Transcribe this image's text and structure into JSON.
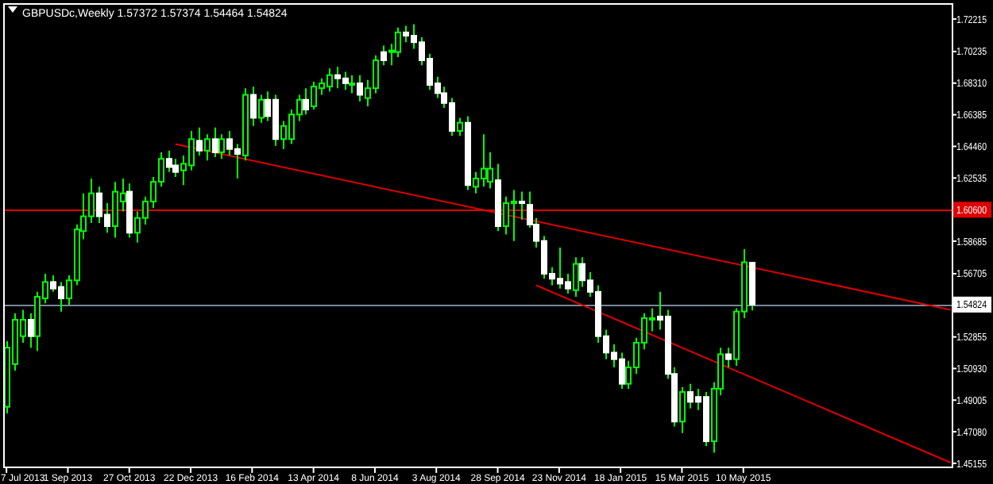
{
  "chart_data": {
    "type": "candlestick",
    "title": "GBPUSDc,Weekly  1.57372 1.57374 1.54464 1.54824",
    "x": [
      "2013-07-07",
      "2013-07-14",
      "2013-07-21",
      "2013-07-28",
      "2013-08-04",
      "2013-08-11",
      "2013-08-18",
      "2013-08-25",
      "2013-09-01",
      "2013-09-08",
      "2013-09-15",
      "2013-09-22",
      "2013-09-29",
      "2013-10-06",
      "2013-10-13",
      "2013-10-20",
      "2013-10-27",
      "2013-11-03",
      "2013-11-10",
      "2013-11-17",
      "2013-11-24",
      "2013-12-01",
      "2013-12-08",
      "2013-12-15",
      "2013-12-22",
      "2013-12-29",
      "2014-01-05",
      "2014-01-12",
      "2014-01-19",
      "2014-01-26",
      "2014-02-02",
      "2014-02-09",
      "2014-02-16",
      "2014-02-23",
      "2014-03-02",
      "2014-03-09",
      "2014-03-16",
      "2014-03-23",
      "2014-03-30",
      "2014-04-06",
      "2014-04-13",
      "2014-04-20",
      "2014-04-27",
      "2014-05-04",
      "2014-05-11",
      "2014-05-18",
      "2014-05-25",
      "2014-06-01",
      "2014-06-08",
      "2014-06-15",
      "2014-06-22",
      "2014-06-29",
      "2014-07-06",
      "2014-07-13",
      "2014-07-20",
      "2014-07-27",
      "2014-08-03",
      "2014-08-10",
      "2014-08-17",
      "2014-08-24",
      "2014-08-31",
      "2014-09-07",
      "2014-09-14",
      "2014-09-21",
      "2014-09-28",
      "2014-10-05",
      "2014-10-12",
      "2014-10-19",
      "2014-10-26",
      "2014-11-02",
      "2014-11-09",
      "2014-11-16",
      "2014-11-23",
      "2014-11-30",
      "2014-12-07",
      "2014-12-14",
      "2014-12-21",
      "2014-12-28",
      "2015-01-04",
      "2015-01-11",
      "2015-01-18",
      "2015-01-25",
      "2015-02-01",
      "2015-02-08",
      "2015-02-15",
      "2015-02-22",
      "2015-03-01",
      "2015-03-08",
      "2015-03-15",
      "2015-03-22",
      "2015-03-29",
      "2015-04-05",
      "2015-04-12",
      "2015-04-19",
      "2015-04-26",
      "2015-05-03",
      "2015-05-10",
      "2015-05-17"
    ],
    "series": [
      {
        "color": "#00ff00",
        "colors": [
          "#00ff00",
          "#00ff00",
          "#00ff00",
          "#ffffff",
          "#00ff00",
          "#00ff00",
          "#ffffff",
          "#ffffff",
          "#00ff00",
          "#00ff00",
          "#00ff00",
          "#00ff00",
          "#ffffff",
          "#ffffff",
          "#00ff00",
          "#00ff00",
          "#ffffff",
          "#00ff00",
          "#00ff00",
          "#00ff00",
          "#00ff00",
          "#ffffff",
          "#ffffff",
          "#00ff00",
          "#00ff00",
          "#ffffff",
          "#00ff00",
          "#ffffff",
          "#00ff00",
          "#ffffff",
          "#ffffff",
          "#00ff00",
          "#ffffff",
          "#00ff00",
          "#ffffff",
          "#ffffff",
          "#00ff00",
          "#00ff00",
          "#00ff00",
          "#ffffff",
          "#00ff00",
          "#00ff00",
          "#00ff00",
          "#ffffff",
          "#ffffff",
          "#00ff00",
          "#ffffff",
          "#00ff00",
          "#00ff00",
          "#ffffff",
          "#00ff00",
          "#00ff00",
          "#ffffff",
          "#ffffff",
          "#ffffff",
          "#ffffff",
          "#ffffff",
          "#ffffff",
          "#ffffff",
          "#00ff00",
          "#ffffff",
          "#00ff00",
          "#00ff00",
          "#00ff00",
          "#ffffff",
          "#00ff00",
          "#00ff00",
          "#ffffff",
          "#ffffff",
          "#ffffff",
          "#ffffff",
          "#ffffff",
          "#ffffff",
          "#ffffff",
          "#00ff00",
          "#ffffff",
          "#ffffff",
          "#ffffff",
          "#ffffff",
          "#ffffff",
          "#ffffff",
          "#00ff00",
          "#00ff00",
          "#00ff00",
          "#00ff00",
          "#ffffff",
          "#ffffff",
          "#ffffff",
          "#00ff00",
          "#ffffff",
          "#ffffff",
          "#ffffff",
          "#00ff00",
          "#00ff00",
          "#ffffff",
          "#00ff00",
          "#00ff00",
          "#ffffff"
        ],
        "ohlc": [
          [
            1.486,
            1.526,
            1.482,
            1.522
          ],
          [
            1.512,
            1.543,
            1.508,
            1.539
          ],
          [
            1.529,
            1.545,
            1.525,
            1.539
          ],
          [
            1.539,
            1.543,
            1.522,
            1.529
          ],
          [
            1.529,
            1.556,
            1.52,
            1.553
          ],
          [
            1.552,
            1.567,
            1.549,
            1.562
          ],
          [
            1.562,
            1.566,
            1.556,
            1.558
          ],
          [
            1.559,
            1.562,
            1.544,
            1.552
          ],
          [
            1.552,
            1.566,
            1.548,
            1.563
          ],
          [
            1.563,
            1.597,
            1.56,
            1.594
          ],
          [
            1.593,
            1.616,
            1.588,
            1.602
          ],
          [
            1.602,
            1.625,
            1.598,
            1.616
          ],
          [
            1.616,
            1.62,
            1.598,
            1.602
          ],
          [
            1.603,
            1.61,
            1.592,
            1.596
          ],
          [
            1.596,
            1.623,
            1.589,
            1.617
          ],
          [
            1.611,
            1.625,
            1.605,
            1.616
          ],
          [
            1.617,
            1.622,
            1.589,
            1.592
          ],
          [
            1.592,
            1.605,
            1.586,
            1.601
          ],
          [
            1.601,
            1.614,
            1.597,
            1.611
          ],
          [
            1.611,
            1.626,
            1.607,
            1.623
          ],
          [
            1.623,
            1.641,
            1.62,
            1.637
          ],
          [
            1.637,
            1.642,
            1.629,
            1.632
          ],
          [
            1.633,
            1.637,
            1.626,
            1.629
          ],
          [
            1.63,
            1.639,
            1.621,
            1.634
          ],
          [
            1.633,
            1.654,
            1.63,
            1.649
          ],
          [
            1.648,
            1.656,
            1.639,
            1.642
          ],
          [
            1.642,
            1.652,
            1.636,
            1.649
          ],
          [
            1.649,
            1.656,
            1.638,
            1.641
          ],
          [
            1.641,
            1.652,
            1.637,
            1.649
          ],
          [
            1.649,
            1.654,
            1.639,
            1.643
          ],
          [
            1.643,
            1.646,
            1.625,
            1.64
          ],
          [
            1.639,
            1.68,
            1.636,
            1.676
          ],
          [
            1.676,
            1.681,
            1.657,
            1.662
          ],
          [
            1.662,
            1.676,
            1.659,
            1.673
          ],
          [
            1.673,
            1.678,
            1.66,
            1.663
          ],
          [
            1.673,
            1.676,
            1.645,
            1.649
          ],
          [
            1.649,
            1.66,
            1.643,
            1.657
          ],
          [
            1.649,
            1.667,
            1.646,
            1.664
          ],
          [
            1.664,
            1.676,
            1.66,
            1.673
          ],
          [
            1.673,
            1.68,
            1.664,
            1.667
          ],
          [
            1.669,
            1.684,
            1.667,
            1.681
          ],
          [
            1.68,
            1.686,
            1.676,
            1.683
          ],
          [
            1.681,
            1.692,
            1.678,
            1.688
          ],
          [
            1.688,
            1.693,
            1.68,
            1.686
          ],
          [
            1.686,
            1.69,
            1.679,
            1.683
          ],
          [
            1.683,
            1.688,
            1.677,
            1.683
          ],
          [
            1.683,
            1.688,
            1.672,
            1.676
          ],
          [
            1.674,
            1.685,
            1.669,
            1.68
          ],
          [
            1.68,
            1.7,
            1.677,
            1.697
          ],
          [
            1.702,
            1.706,
            1.694,
            1.697
          ],
          [
            1.702,
            1.707,
            1.694,
            1.703
          ],
          [
            1.702,
            1.717,
            1.699,
            1.714
          ],
          [
            1.714,
            1.718,
            1.708,
            1.712
          ],
          [
            1.712,
            1.719,
            1.704,
            1.708
          ],
          [
            1.708,
            1.711,
            1.694,
            1.697
          ],
          [
            1.698,
            1.701,
            1.679,
            1.682
          ],
          [
            1.683,
            1.687,
            1.674,
            1.677
          ],
          [
            1.677,
            1.681,
            1.668,
            1.671
          ],
          [
            1.671,
            1.674,
            1.651,
            1.654
          ],
          [
            1.654,
            1.662,
            1.651,
            1.659
          ],
          [
            1.659,
            1.663,
            1.618,
            1.621
          ],
          [
            1.62,
            1.629,
            1.616,
            1.625
          ],
          [
            1.625,
            1.652,
            1.62,
            1.631
          ],
          [
            1.623,
            1.641,
            1.619,
            1.631
          ],
          [
            1.624,
            1.634,
            1.593,
            1.596
          ],
          [
            1.596,
            1.614,
            1.591,
            1.61
          ],
          [
            1.61,
            1.618,
            1.587,
            1.611
          ],
          [
            1.611,
            1.617,
            1.6,
            1.61
          ],
          [
            1.609,
            1.617,
            1.595,
            1.597
          ],
          [
            1.597,
            1.601,
            1.583,
            1.587
          ],
          [
            1.587,
            1.59,
            1.564,
            1.567
          ],
          [
            1.567,
            1.571,
            1.56,
            1.564
          ],
          [
            1.564,
            1.583,
            1.558,
            1.561
          ],
          [
            1.562,
            1.567,
            1.555,
            1.558
          ],
          [
            1.557,
            1.577,
            1.553,
            1.573
          ],
          [
            1.573,
            1.577,
            1.559,
            1.563
          ],
          [
            1.563,
            1.568,
            1.553,
            1.556
          ],
          [
            1.556,
            1.56,
            1.525,
            1.529
          ],
          [
            1.529,
            1.533,
            1.515,
            1.519
          ],
          [
            1.519,
            1.524,
            1.51,
            1.515
          ],
          [
            1.515,
            1.519,
            1.497,
            1.5
          ],
          [
            1.5,
            1.514,
            1.497,
            1.51
          ],
          [
            1.51,
            1.528,
            1.506,
            1.525
          ],
          [
            1.525,
            1.543,
            1.521,
            1.54
          ],
          [
            1.54,
            1.546,
            1.532,
            1.54
          ],
          [
            1.541,
            1.556,
            1.533,
            1.539
          ],
          [
            1.541,
            1.545,
            1.503,
            1.506
          ],
          [
            1.506,
            1.51,
            1.474,
            1.477
          ],
          [
            1.477,
            1.498,
            1.47,
            1.495
          ],
          [
            1.495,
            1.5,
            1.485,
            1.489
          ],
          [
            1.492,
            1.497,
            1.484,
            1.489
          ],
          [
            1.492,
            1.495,
            1.462,
            1.465
          ],
          [
            1.465,
            1.501,
            1.458,
            1.497
          ],
          [
            1.497,
            1.522,
            1.493,
            1.518
          ],
          [
            1.518,
            1.522,
            1.51,
            1.515
          ],
          [
            1.515,
            1.546,
            1.511,
            1.544
          ],
          [
            1.544,
            1.582,
            1.54,
            1.574
          ],
          [
            1.57372,
            1.57374,
            1.54464,
            1.54824
          ]
        ]
      },
      {
        "type": "line",
        "color": "#e00000",
        "x": [
          "2013-12-08",
          "2015-11-15"
        ],
        "values": [
          1.646,
          1.545
        ]
      },
      {
        "type": "line",
        "color": "#e00000",
        "x": [
          "2014-11-02",
          "2015-11-15"
        ],
        "values": [
          1.56,
          1.452
        ]
      }
    ],
    "xlim": [
      "2013-07-04",
      "2015-11-16"
    ],
    "xticks": [
      {
        "value": "2013-07-07",
        "label": "7 Jul 2013"
      },
      {
        "value": "2013-09-01",
        "label": "1 Sep 2013"
      },
      {
        "value": "2013-10-27",
        "label": "27 Oct 2013"
      },
      {
        "value": "2013-12-22",
        "label": "22 Dec 2013"
      },
      {
        "value": "2014-02-16",
        "label": "16 Feb 2014"
      },
      {
        "value": "2014-04-13",
        "label": "13 Apr 2014"
      },
      {
        "value": "2014-06-08",
        "label": "8 Jun 2014"
      },
      {
        "value": "2014-08-03",
        "label": "3 Aug 2014"
      },
      {
        "value": "2014-09-28",
        "label": "28 Sep 2014"
      },
      {
        "value": "2014-11-23",
        "label": "23 Nov 2014"
      },
      {
        "value": "2015-01-18",
        "label": "18 Jan 2015"
      },
      {
        "value": "2015-03-15",
        "label": "15 Mar 2015"
      },
      {
        "value": "2015-05-10",
        "label": "10 May 2015"
      }
    ],
    "ylim": [
      1.4496,
      1.7318
    ],
    "yticks": [
      1.72215,
      1.70235,
      {
        "value": 1.6831,
        "label": "1.68310"
      },
      1.66385,
      {
        "value": 1.6446,
        "label": "1.64460"
      },
      1.62535,
      1.58685,
      1.56705,
      1.52855,
      {
        "value": 1.5093,
        "label": "1.50930"
      },
      1.49005,
      {
        "value": 1.4708,
        "label": "1.47080"
      },
      1.45155
    ],
    "ref_lines": [
      {
        "axis": "y",
        "value": 1.606,
        "label": "1.60600",
        "color": "#e00000"
      },
      {
        "axis": "y",
        "value": 1.54824,
        "label": "1.54824",
        "color": "#778899"
      }
    ]
  }
}
